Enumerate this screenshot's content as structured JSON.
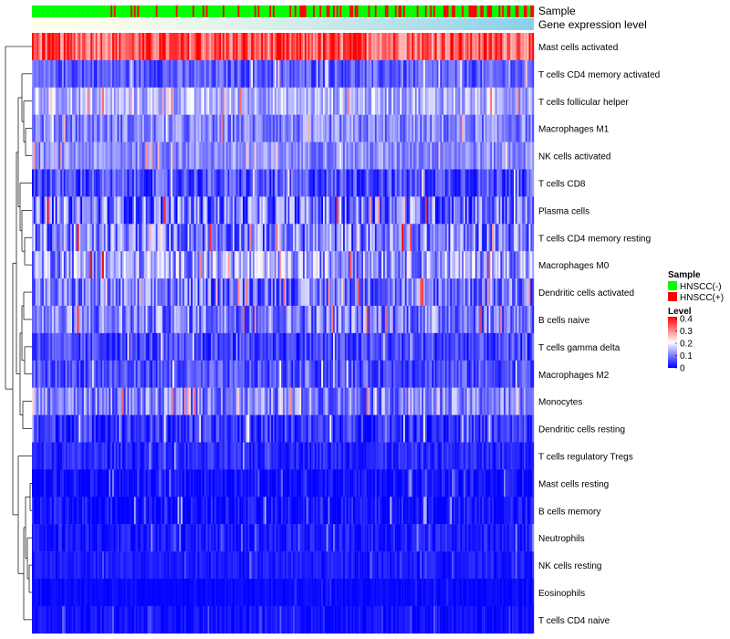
{
  "chart_data": {
    "type": "heatmap",
    "title": "",
    "annotation_tracks": [
      "Sample",
      "Gene expression level"
    ],
    "rows": [
      "Mast cells activated",
      "T cells CD4 memory activated",
      "T cells follicular helper",
      "Macrophages M1",
      "NK cells activated",
      "T cells CD8",
      "Plasma cells",
      "T cells CD4 memory resting",
      "Macrophages M0",
      "Dendritic cells activated",
      "B cells naive",
      "T cells gamma delta",
      "Macrophages M2",
      "Monocytes",
      "Dendritic cells resting",
      "T cells regulatory  Tregs",
      "Mast cells resting",
      "B cells memory",
      "Neutrophils",
      "NK cells resting",
      "Eosinophils",
      "T cells CD4 naive"
    ],
    "row_typical_level": [
      0.33,
      0.07,
      0.14,
      0.1,
      0.11,
      0.06,
      0.09,
      0.1,
      0.13,
      0.09,
      0.1,
      0.05,
      0.06,
      0.1,
      0.04,
      0.03,
      0.01,
      0.01,
      0.02,
      0.02,
      0.005,
      0.01
    ],
    "row_variability": [
      0.08,
      0.05,
      0.06,
      0.06,
      0.05,
      0.06,
      0.1,
      0.09,
      0.09,
      0.08,
      0.08,
      0.05,
      0.05,
      0.07,
      0.05,
      0.03,
      0.03,
      0.04,
      0.03,
      0.02,
      0.01,
      0.02
    ],
    "n_samples": 300,
    "legend": {
      "sample_title": "Sample",
      "sample_entries": [
        {
          "label": "HNSCC(-)",
          "color": "#00ff00"
        },
        {
          "label": "HNSCC(+)",
          "color": "#ff0000"
        }
      ],
      "level_title": "Level",
      "level_ticks": [
        "0.4",
        "0.3",
        "0.2",
        "0.1",
        "0"
      ],
      "level_range": [
        0,
        0.4
      ]
    },
    "colors": {
      "low": "#0000ff",
      "mid": "#ffffff",
      "high": "#ff0000",
      "expression_bar": "#87ceeb"
    }
  }
}
